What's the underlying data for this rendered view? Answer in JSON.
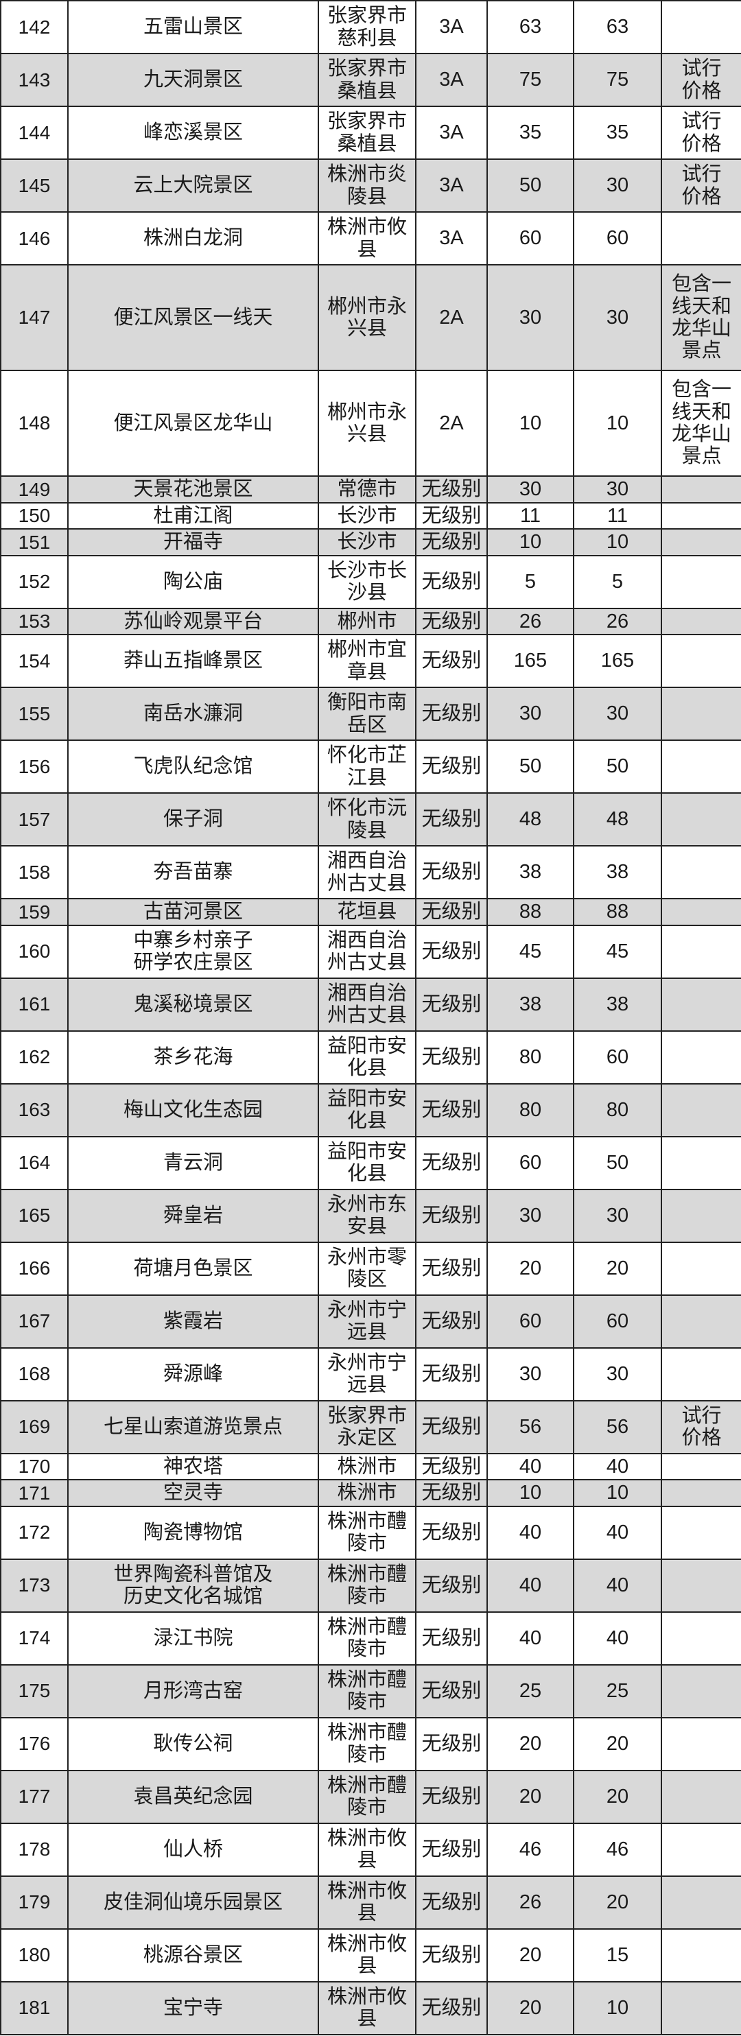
{
  "columns": [
    "no",
    "name",
    "region",
    "grade",
    "price_before",
    "price_after",
    "note"
  ],
  "rows": [
    {
      "no": "142",
      "name": "五雷山景区",
      "region": "张家界市\n慈利县",
      "grade": "3A",
      "price_before": "63",
      "price_after": "63",
      "note": ""
    },
    {
      "no": "143",
      "name": "九天洞景区",
      "region": "张家界市\n桑植县",
      "grade": "3A",
      "price_before": "75",
      "price_after": "75",
      "note": "试行\n价格"
    },
    {
      "no": "144",
      "name": "峰恋溪景区",
      "region": "张家界市\n桑植县",
      "grade": "3A",
      "price_before": "35",
      "price_after": "35",
      "note": "试行\n价格"
    },
    {
      "no": "145",
      "name": "云上大院景区",
      "region": "株洲市炎\n陵县",
      "grade": "3A",
      "price_before": "50",
      "price_after": "30",
      "note": "试行\n价格"
    },
    {
      "no": "146",
      "name": "株洲白龙洞",
      "region": "株洲市攸\n县",
      "grade": "3A",
      "price_before": "60",
      "price_after": "60",
      "note": ""
    },
    {
      "no": "147",
      "name": "便江风景区一线天",
      "region": "郴州市永\n兴县",
      "grade": "2A",
      "price_before": "30",
      "price_after": "30",
      "note": "包含一\n线天和\n龙华山\n景点"
    },
    {
      "no": "148",
      "name": "便江风景区龙华山",
      "region": "郴州市永\n兴县",
      "grade": "2A",
      "price_before": "10",
      "price_after": "10",
      "note": "包含一\n线天和\n龙华山\n景点"
    },
    {
      "no": "149",
      "name": "天景花池景区",
      "region": "常德市",
      "grade": "无级别",
      "price_before": "30",
      "price_after": "30",
      "note": ""
    },
    {
      "no": "150",
      "name": "杜甫江阁",
      "region": "长沙市",
      "grade": "无级别",
      "price_before": "11",
      "price_after": "11",
      "note": ""
    },
    {
      "no": "151",
      "name": "开福寺",
      "region": "长沙市",
      "grade": "无级别",
      "price_before": "10",
      "price_after": "10",
      "note": ""
    },
    {
      "no": "152",
      "name": "陶公庙",
      "region": "长沙市长\n沙县",
      "grade": "无级别",
      "price_before": "5",
      "price_after": "5",
      "note": ""
    },
    {
      "no": "153",
      "name": "苏仙岭观景平台",
      "region": "郴州市",
      "grade": "无级别",
      "price_before": "26",
      "price_after": "26",
      "note": ""
    },
    {
      "no": "154",
      "name": "莽山五指峰景区",
      "region": "郴州市宜\n章县",
      "grade": "无级别",
      "price_before": "165",
      "price_after": "165",
      "note": ""
    },
    {
      "no": "155",
      "name": "南岳水濂洞",
      "region": "衡阳市南\n岳区",
      "grade": "无级别",
      "price_before": "30",
      "price_after": "30",
      "note": ""
    },
    {
      "no": "156",
      "name": "飞虎队纪念馆",
      "region": "怀化市芷\n江县",
      "grade": "无级别",
      "price_before": "50",
      "price_after": "50",
      "note": ""
    },
    {
      "no": "157",
      "name": "保子洞",
      "region": "怀化市沅\n陵县",
      "grade": "无级别",
      "price_before": "48",
      "price_after": "48",
      "note": ""
    },
    {
      "no": "158",
      "name": "夯吾苗寨",
      "region": "湘西自治\n州古丈县",
      "grade": "无级别",
      "price_before": "38",
      "price_after": "38",
      "note": ""
    },
    {
      "no": "159",
      "name": "古苗河景区",
      "region": "花垣县",
      "grade": "无级别",
      "price_before": "88",
      "price_after": "88",
      "note": ""
    },
    {
      "no": "160",
      "name": "中寨乡村亲子\n研学农庄景区",
      "region": "湘西自治\n州古丈县",
      "grade": "无级别",
      "price_before": "45",
      "price_after": "45",
      "note": ""
    },
    {
      "no": "161",
      "name": "鬼溪秘境景区",
      "region": "湘西自治\n州古丈县",
      "grade": "无级别",
      "price_before": "38",
      "price_after": "38",
      "note": ""
    },
    {
      "no": "162",
      "name": "茶乡花海",
      "region": "益阳市安\n化县",
      "grade": "无级别",
      "price_before": "80",
      "price_after": "60",
      "note": ""
    },
    {
      "no": "163",
      "name": "梅山文化生态园",
      "region": "益阳市安\n化县",
      "grade": "无级别",
      "price_before": "80",
      "price_after": "80",
      "note": ""
    },
    {
      "no": "164",
      "name": "青云洞",
      "region": "益阳市安\n化县",
      "grade": "无级别",
      "price_before": "60",
      "price_after": "50",
      "note": ""
    },
    {
      "no": "165",
      "name": "舜皇岩",
      "region": "永州市东\n安县",
      "grade": "无级别",
      "price_before": "30",
      "price_after": "30",
      "note": ""
    },
    {
      "no": "166",
      "name": "荷塘月色景区",
      "region": "永州市零\n陵区",
      "grade": "无级别",
      "price_before": "20",
      "price_after": "20",
      "note": ""
    },
    {
      "no": "167",
      "name": "紫霞岩",
      "region": "永州市宁\n远县",
      "grade": "无级别",
      "price_before": "60",
      "price_after": "60",
      "note": ""
    },
    {
      "no": "168",
      "name": "舜源峰",
      "region": "永州市宁\n远县",
      "grade": "无级别",
      "price_before": "30",
      "price_after": "30",
      "note": ""
    },
    {
      "no": "169",
      "name": "七星山索道游览景点",
      "region": "张家界市\n永定区",
      "grade": "无级别",
      "price_before": "56",
      "price_after": "56",
      "note": "试行\n价格"
    },
    {
      "no": "170",
      "name": "神农塔",
      "region": "株洲市",
      "grade": "无级别",
      "price_before": "40",
      "price_after": "40",
      "note": ""
    },
    {
      "no": "171",
      "name": "空灵寺",
      "region": "株洲市",
      "grade": "无级别",
      "price_before": "10",
      "price_after": "10",
      "note": ""
    },
    {
      "no": "172",
      "name": "陶瓷博物馆",
      "region": "株洲市醴\n陵市",
      "grade": "无级别",
      "price_before": "40",
      "price_after": "40",
      "note": ""
    },
    {
      "no": "173",
      "name": "世界陶瓷科普馆及\n历史文化名城馆",
      "region": "株洲市醴\n陵市",
      "grade": "无级别",
      "price_before": "40",
      "price_after": "40",
      "note": ""
    },
    {
      "no": "174",
      "name": "渌江书院",
      "region": "株洲市醴\n陵市",
      "grade": "无级别",
      "price_before": "40",
      "price_after": "40",
      "note": ""
    },
    {
      "no": "175",
      "name": "月形湾古窑",
      "region": "株洲市醴\n陵市",
      "grade": "无级别",
      "price_before": "25",
      "price_after": "25",
      "note": ""
    },
    {
      "no": "176",
      "name": "耿传公祠",
      "region": "株洲市醴\n陵市",
      "grade": "无级别",
      "price_before": "20",
      "price_after": "20",
      "note": ""
    },
    {
      "no": "177",
      "name": "袁昌英纪念园",
      "region": "株洲市醴\n陵市",
      "grade": "无级别",
      "price_before": "20",
      "price_after": "20",
      "note": ""
    },
    {
      "no": "178",
      "name": "仙人桥",
      "region": "株洲市攸\n县",
      "grade": "无级别",
      "price_before": "46",
      "price_after": "46",
      "note": ""
    },
    {
      "no": "179",
      "name": "皮佳洞仙境乐园景区",
      "region": "株洲市攸\n县",
      "grade": "无级别",
      "price_before": "26",
      "price_after": "20",
      "note": ""
    },
    {
      "no": "180",
      "name": "桃源谷景区",
      "region": "株洲市攸\n县",
      "grade": "无级别",
      "price_before": "20",
      "price_after": "15",
      "note": ""
    },
    {
      "no": "181",
      "name": "宝宁寺",
      "region": "株洲市攸\n县",
      "grade": "无级别",
      "price_before": "20",
      "price_after": "10",
      "note": ""
    }
  ],
  "colors": {
    "odd_row_bg": "#d9d9d9",
    "even_row_bg": "#ffffff",
    "border": "#222222"
  }
}
